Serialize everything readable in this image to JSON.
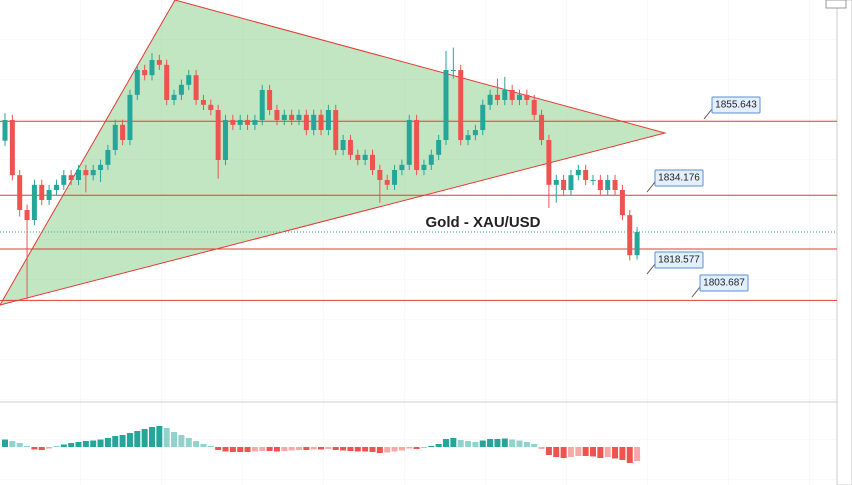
{
  "chart_data": [
    {
      "type": "candlestick",
      "title": "Gold - XAU/USD",
      "up_color": "#26a69a",
      "down_color": "#ef5350",
      "ylim": [
        1774.8,
        1890.8
      ],
      "open": [
        1850.0,
        1856.0,
        1840.0,
        1829.9,
        1827.0,
        1837.2,
        1832.8,
        1835.7,
        1837.2,
        1840.0,
        1838.6,
        1841.5,
        1840.0,
        1841.5,
        1843.0,
        1847.3,
        1854.6,
        1850.2,
        1863.3,
        1870.5,
        1869.0,
        1873.4,
        1872.0,
        1861.8,
        1863.3,
        1866.2,
        1869.0,
        1861.8,
        1860.4,
        1858.9,
        1844.4,
        1856.0,
        1854.6,
        1856.0,
        1854.6,
        1856.0,
        1864.7,
        1858.9,
        1856.0,
        1857.5,
        1856.0,
        1857.5,
        1853.1,
        1857.5,
        1853.1,
        1858.9,
        1847.3,
        1850.2,
        1845.9,
        1844.4,
        1845.9,
        1841.5,
        1838.6,
        1837.2,
        1841.5,
        1843.0,
        1856.0,
        1841.5,
        1843.0,
        1845.9,
        1850.2,
        1870.5,
        1870.5,
        1850.2,
        1851.6,
        1853.1,
        1860.4,
        1863.3,
        1861.8,
        1864.7,
        1861.8,
        1863.3,
        1861.8,
        1857.5,
        1850.2,
        1837.2,
        1838.6,
        1835.7,
        1840.0,
        1841.5,
        1838.6,
        1838.6,
        1835.7,
        1838.6,
        1835.7,
        1828.4,
        1816.8
      ],
      "high": [
        1858.0,
        1857.5,
        1841.5,
        1831.5,
        1838.7,
        1838.7,
        1837.2,
        1838.7,
        1841.5,
        1841.5,
        1843.0,
        1843.0,
        1843.0,
        1844.5,
        1848.8,
        1856.1,
        1856.1,
        1864.8,
        1872.0,
        1872.0,
        1875.4,
        1874.9,
        1873.5,
        1864.8,
        1867.7,
        1870.5,
        1870.5,
        1863.3,
        1861.9,
        1860.4,
        1857.5,
        1857.5,
        1857.5,
        1857.5,
        1857.5,
        1866.2,
        1866.2,
        1860.4,
        1859.0,
        1859.0,
        1859.0,
        1859.0,
        1859.0,
        1859.0,
        1860.4,
        1860.4,
        1851.7,
        1851.7,
        1847.4,
        1847.4,
        1847.4,
        1843.0,
        1840.1,
        1843.0,
        1844.5,
        1857.5,
        1857.5,
        1844.5,
        1847.4,
        1851.7,
        1876.0,
        1877.0,
        1872.0,
        1853.1,
        1854.6,
        1861.9,
        1864.8,
        1868.0,
        1868.5,
        1866.2,
        1864.8,
        1864.8,
        1863.3,
        1859.0,
        1851.7,
        1840.1,
        1840.1,
        1841.5,
        1843.0,
        1843.0,
        1840.1,
        1840.1,
        1840.1,
        1840.1,
        1837.2,
        1829.9,
        1825.0
      ],
      "low": [
        1848.5,
        1838.5,
        1828.0,
        1804.0,
        1825.5,
        1831.3,
        1831.3,
        1834.2,
        1835.7,
        1837.1,
        1837.1,
        1835.0,
        1838.5,
        1838.0,
        1841.5,
        1845.8,
        1848.7,
        1848.7,
        1861.8,
        1867.5,
        1867.5,
        1870.5,
        1860.3,
        1860.3,
        1861.8,
        1864.7,
        1860.3,
        1858.9,
        1857.4,
        1839.0,
        1842.9,
        1853.1,
        1853.1,
        1853.1,
        1853.1,
        1854.5,
        1857.4,
        1854.5,
        1854.5,
        1854.5,
        1854.5,
        1851.6,
        1851.6,
        1851.6,
        1851.6,
        1845.8,
        1845.8,
        1844.4,
        1842.9,
        1842.9,
        1840.0,
        1832.0,
        1835.7,
        1835.7,
        1840.0,
        1841.5,
        1840.0,
        1840.0,
        1841.5,
        1844.4,
        1848.7,
        1868.0,
        1848.7,
        1848.7,
        1850.1,
        1851.6,
        1858.9,
        1860.3,
        1860.3,
        1860.3,
        1860.3,
        1860.3,
        1856.0,
        1848.7,
        1830.5,
        1832.0,
        1834.2,
        1834.2,
        1838.5,
        1837.1,
        1837.1,
        1834.2,
        1834.2,
        1834.2,
        1826.9,
        1815.3,
        1815.5
      ],
      "close": [
        1856.0,
        1840.0,
        1829.9,
        1827.0,
        1837.2,
        1832.8,
        1835.7,
        1837.2,
        1840.0,
        1838.6,
        1841.5,
        1840.0,
        1841.5,
        1843.0,
        1847.3,
        1854.6,
        1850.2,
        1863.3,
        1870.5,
        1869.0,
        1873.4,
        1872.0,
        1861.8,
        1863.3,
        1866.2,
        1869.0,
        1861.8,
        1860.4,
        1858.9,
        1844.4,
        1856.0,
        1854.6,
        1856.0,
        1854.6,
        1856.0,
        1864.7,
        1858.9,
        1856.0,
        1857.5,
        1856.0,
        1857.5,
        1853.1,
        1857.5,
        1853.1,
        1858.9,
        1847.3,
        1850.2,
        1845.9,
        1844.4,
        1845.9,
        1841.5,
        1838.6,
        1837.2,
        1841.5,
        1843.0,
        1856.0,
        1841.5,
        1843.0,
        1845.9,
        1850.2,
        1870.5,
        1870.5,
        1850.2,
        1851.6,
        1853.1,
        1860.4,
        1863.3,
        1861.8,
        1864.7,
        1861.8,
        1863.3,
        1861.8,
        1857.5,
        1850.2,
        1837.2,
        1838.6,
        1835.7,
        1840.0,
        1841.5,
        1838.6,
        1838.6,
        1835.7,
        1838.6,
        1835.7,
        1828.4,
        1816.8,
        1823.5
      ],
      "levels": [
        1855.643,
        1834.176,
        1818.577,
        1803.687
      ],
      "level_color": "#e53935"
    },
    {
      "type": "bar",
      "ylim": [
        -7.6,
        8.4
      ],
      "up_color": "#26a69a",
      "down_color": "#ef5350",
      "values": [
        1.5,
        1.2,
        0.8,
        0.2,
        -0.5,
        -0.6,
        -0.3,
        0.2,
        0.5,
        0.8,
        1.0,
        1.2,
        1.3,
        1.5,
        1.8,
        2.2,
        2.4,
        2.8,
        3.2,
        3.6,
        4.0,
        4.2,
        3.8,
        3.0,
        2.4,
        1.8,
        1.2,
        0.6,
        0.2,
        -0.6,
        -0.9,
        -1.0,
        -1.0,
        -1.0,
        -0.9,
        -0.8,
        -0.8,
        -0.9,
        -0.8,
        -0.7,
        -0.6,
        -0.6,
        -0.5,
        -0.5,
        -0.4,
        -0.6,
        -0.7,
        -0.8,
        -0.9,
        -0.9,
        -1.0,
        -1.2,
        -1.1,
        -0.9,
        -0.7,
        -0.3,
        -0.4,
        -0.2,
        0.2,
        0.6,
        1.6,
        1.8,
        1.4,
        1.2,
        1.0,
        1.3,
        1.6,
        1.6,
        1.7,
        1.5,
        1.3,
        1.0,
        0.6,
        -0.4,
        -1.6,
        -2.0,
        -2.2,
        -2.0,
        -1.8,
        -1.8,
        -1.9,
        -2.2,
        -2.0,
        -2.3,
        -2.6,
        -3.2,
        -2.8
      ]
    }
  ]
}
